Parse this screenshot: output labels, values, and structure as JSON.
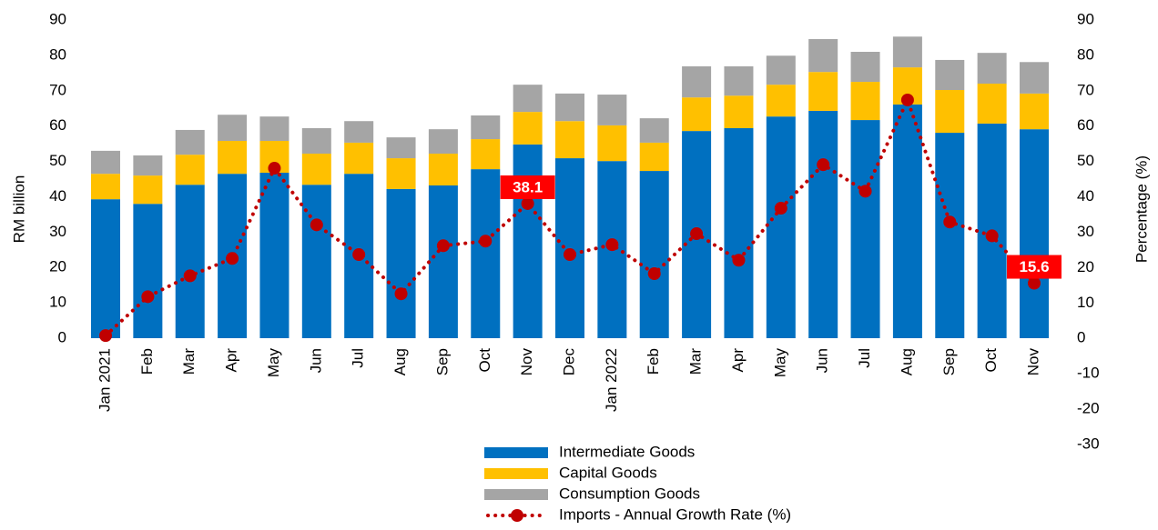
{
  "chart_data": {
    "type": "bar",
    "stacked": true,
    "y_label": "RM billion",
    "y2_label": "Percentage (%)",
    "categories": [
      "Jan 2021",
      "Feb",
      "Mar",
      "Apr",
      "May",
      "Jun",
      "Jul",
      "Aug",
      "Sep",
      "Oct",
      "Nov",
      "Dec",
      "Jan 2022",
      "Feb",
      "Mar",
      "Apr",
      "May",
      "Jun",
      "Jul",
      "Aug",
      "Sep",
      "Oct",
      "Nov"
    ],
    "ylim": [
      0,
      90
    ],
    "yticks": [
      0,
      10,
      20,
      30,
      40,
      50,
      60,
      70,
      80,
      90
    ],
    "y2lim": [
      -30,
      90
    ],
    "y2ticks": [
      -30,
      -20,
      -10,
      0,
      10,
      20,
      30,
      40,
      50,
      60,
      70,
      80,
      90
    ],
    "series": [
      {
        "name": "Intermediate Goods",
        "color": "#0070c0",
        "values": [
          39.3,
          38.0,
          43.4,
          46.5,
          46.8,
          43.4,
          46.5,
          42.2,
          43.2,
          47.8,
          54.8,
          50.9,
          50.1,
          47.3,
          58.6,
          59.4,
          62.7,
          64.3,
          61.7,
          66.1,
          58.1,
          60.7,
          59.1
        ]
      },
      {
        "name": "Capital Goods",
        "color": "#ffc000",
        "values": [
          7.2,
          8.0,
          8.5,
          9.3,
          9.0,
          8.8,
          8.8,
          8.7,
          9.0,
          8.5,
          9.2,
          10.5,
          10.1,
          8.0,
          9.5,
          9.2,
          9.0,
          11.0,
          10.8,
          10.5,
          12.1,
          11.3,
          10.1
        ]
      },
      {
        "name": "Consumption Goods",
        "color": "#a5a5a5",
        "values": [
          6.5,
          5.7,
          7.0,
          7.4,
          6.9,
          7.2,
          6.1,
          5.9,
          6.9,
          6.7,
          7.7,
          7.8,
          8.7,
          6.9,
          8.8,
          8.3,
          8.2,
          9.3,
          8.5,
          8.7,
          8.5,
          8.7,
          8.9
        ]
      },
      {
        "name": "Imports - Annual Growth Rate (%)",
        "color": "#c00000",
        "type": "line",
        "axis": "y2",
        "values": [
          0.8,
          11.8,
          17.7,
          22.6,
          48.1,
          32.1,
          23.7,
          12.6,
          26.2,
          27.5,
          38.1,
          23.7,
          26.5,
          18.3,
          29.6,
          22.1,
          36.8,
          49.1,
          41.6,
          67.4,
          32.9,
          29.0,
          15.6
        ],
        "value_labels": [
          null,
          null,
          null,
          null,
          null,
          null,
          null,
          null,
          null,
          null,
          "38.1",
          null,
          null,
          null,
          null,
          null,
          null,
          null,
          null,
          null,
          null,
          null,
          "15.6"
        ]
      }
    ]
  }
}
